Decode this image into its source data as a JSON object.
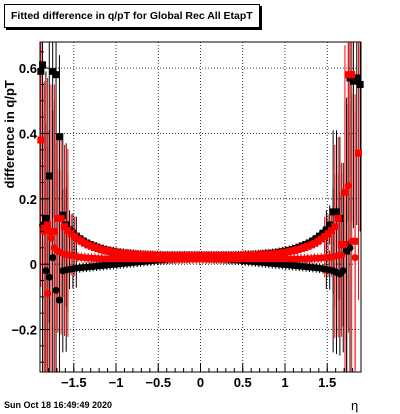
{
  "title": "Fitted difference in q/pT for Global Rec All EtapT",
  "timestamp": "Sun Oct 18 16:49:49 2020",
  "chart_data": {
    "type": "scatter",
    "title": "Fitted difference in q/pT for Global Rec All EtapT",
    "xlabel": "η",
    "ylabel": "difference in q/pT",
    "xlim": [
      -1.9,
      1.9
    ],
    "ylim": [
      -0.33,
      0.68
    ],
    "grid": true,
    "x_ticks": [
      -1.5,
      -1,
      -0.5,
      0,
      0.5,
      1,
      1.5
    ],
    "x_tick_labels": [
      "−1.5",
      "−1",
      "−0.5",
      "0",
      "0.5",
      "1",
      "1.5"
    ],
    "y_ticks": [
      -0.2,
      0,
      0.2,
      0.4,
      0.6
    ],
    "y_tick_labels": [
      "−0.2",
      "0",
      "0.2",
      "0.4",
      "0.6"
    ],
    "series": [
      {
        "color": "#000000",
        "marker": "square",
        "x": [
          -1.89,
          -1.87,
          -1.83,
          -1.79,
          -1.75,
          -1.71,
          -1.67,
          -1.63,
          -1.59,
          -1.55,
          -1.51,
          -1.47,
          -1.43,
          -1.39,
          -1.35,
          -1.31,
          -1.27,
          -1.23,
          -1.19,
          -1.15,
          -1.11,
          -1.07,
          -1.03,
          -0.99,
          -0.95,
          -0.91,
          -0.87,
          -0.83,
          -0.79,
          -0.75,
          -0.71,
          -0.67,
          -0.63,
          -0.59,
          -0.55,
          -0.51,
          -0.47,
          -0.43,
          -0.39,
          -0.35,
          -0.31,
          -0.27,
          -0.23,
          -0.19,
          -0.15,
          -0.11,
          -0.07,
          -0.03,
          0.01,
          0.05,
          0.09,
          0.13,
          0.17,
          0.21,
          0.25,
          0.29,
          0.33,
          0.37,
          0.41,
          0.45,
          0.49,
          0.53,
          0.57,
          0.61,
          0.65,
          0.69,
          0.73,
          0.77,
          0.81,
          0.85,
          0.89,
          0.93,
          0.97,
          1.01,
          1.05,
          1.09,
          1.13,
          1.17,
          1.21,
          1.25,
          1.29,
          1.33,
          1.37,
          1.41,
          1.45,
          1.49,
          1.53,
          1.57,
          1.61,
          1.65,
          1.69,
          1.73,
          1.77,
          1.81,
          1.85,
          1.89
        ],
        "y": [
          0.59,
          0.61,
          0.14,
          0.27,
          0.59,
          0.58,
          0.39,
          0.15,
          0.12,
          0.105,
          0.095,
          0.086,
          0.078,
          0.071,
          0.065,
          0.06,
          0.056,
          0.052,
          0.048,
          0.045,
          0.042,
          0.04,
          0.038,
          0.036,
          0.034,
          0.033,
          0.032,
          0.031,
          0.03,
          0.029,
          0.028,
          0.028,
          0.027,
          0.027,
          0.026,
          0.026,
          0.026,
          0.025,
          0.025,
          0.025,
          0.025,
          0.025,
          0.025,
          0.025,
          0.025,
          0.025,
          0.025,
          0.025,
          0.025,
          0.025,
          0.025,
          0.025,
          0.025,
          0.025,
          0.025,
          0.025,
          0.025,
          0.025,
          0.026,
          0.026,
          0.026,
          0.027,
          0.027,
          0.028,
          0.028,
          0.029,
          0.03,
          0.031,
          0.032,
          0.033,
          0.034,
          0.036,
          0.038,
          0.04,
          0.042,
          0.045,
          0.048,
          0.052,
          0.056,
          0.06,
          0.065,
          0.071,
          0.078,
          0.086,
          0.095,
          0.105,
          0.12,
          0.16,
          0.16,
          0.14,
          0.06,
          0.04,
          0.57,
          0.56,
          0.57,
          0.55
        ]
      },
      {
        "color": "#000000",
        "marker": "circle",
        "x": [
          -1.87,
          -1.83,
          -1.79,
          -1.75,
          -1.71,
          -1.67,
          -1.63,
          -1.59,
          -1.55,
          -1.51,
          -1.47,
          -1.43,
          -1.39,
          -1.35,
          -1.31,
          -1.27,
          -1.23,
          -1.19,
          -1.15,
          -1.11,
          -1.07,
          -1.03,
          -0.99,
          -0.95,
          -0.91,
          -0.87,
          -0.83,
          -0.79,
          -0.75,
          -0.71,
          -0.67,
          -0.63,
          -0.59,
          -0.55,
          -0.51,
          -0.47,
          -0.43,
          -0.39,
          -0.35,
          -0.31,
          -0.27,
          -0.23,
          -0.19,
          -0.15,
          -0.11,
          -0.07,
          -0.03,
          0.01,
          0.05,
          0.09,
          0.13,
          0.17,
          0.21,
          0.25,
          0.29,
          0.33,
          0.37,
          0.41,
          0.45,
          0.49,
          0.53,
          0.57,
          0.61,
          0.65,
          0.69,
          0.73,
          0.77,
          0.81,
          0.85,
          0.89,
          0.93,
          0.97,
          1.01,
          1.05,
          1.09,
          1.13,
          1.17,
          1.21,
          1.25,
          1.29,
          1.33,
          1.37,
          1.41,
          1.45,
          1.49,
          1.53,
          1.57,
          1.61,
          1.65,
          1.69,
          1.73,
          1.77
        ],
        "y": [
          0.12,
          -0.02,
          -0.04,
          0.02,
          -0.08,
          -0.11,
          -0.02,
          -0.018,
          -0.016,
          -0.014,
          -0.012,
          -0.011,
          -0.01,
          -0.009,
          -0.008,
          -0.007,
          -0.006,
          -0.005,
          -0.004,
          -0.003,
          -0.002,
          -0.001,
          0.0,
          0.001,
          0.002,
          0.003,
          0.004,
          0.005,
          0.006,
          0.007,
          0.008,
          0.009,
          0.01,
          0.011,
          0.012,
          0.013,
          0.014,
          0.015,
          0.016,
          0.017,
          0.018,
          0.018,
          0.019,
          0.019,
          0.02,
          0.02,
          0.02,
          0.02,
          0.02,
          0.019,
          0.019,
          0.018,
          0.018,
          0.017,
          0.016,
          0.015,
          0.014,
          0.013,
          0.012,
          0.011,
          0.01,
          0.009,
          0.008,
          0.007,
          0.006,
          0.005,
          0.004,
          0.003,
          0.002,
          0.001,
          0.0,
          -0.001,
          -0.002,
          -0.003,
          -0.004,
          -0.005,
          -0.006,
          -0.007,
          -0.008,
          -0.009,
          -0.01,
          -0.011,
          -0.012,
          -0.014,
          -0.016,
          -0.018,
          -0.02,
          -0.025,
          -0.03,
          -0.02,
          0.06,
          0.05
        ]
      },
      {
        "color": "#ff0000",
        "marker": "square",
        "x": [
          -1.89,
          -1.85,
          -1.81,
          -1.77,
          -1.73,
          -1.69,
          -1.65,
          -1.61,
          -1.57,
          -1.53,
          -1.49,
          -1.45,
          -1.41,
          -1.37,
          -1.33,
          -1.29,
          -1.25,
          -1.21,
          -1.17,
          -1.13,
          -1.09,
          -1.05,
          -1.01,
          -0.97,
          -0.93,
          -0.89,
          -0.85,
          -0.81,
          -0.77,
          -0.73,
          -0.69,
          -0.65,
          -0.61,
          -0.57,
          -0.53,
          -0.49,
          -0.45,
          -0.41,
          -0.37,
          -0.33,
          -0.29,
          -0.25,
          -0.21,
          -0.17,
          -0.13,
          -0.09,
          -0.05,
          -0.01,
          0.03,
          0.07,
          0.11,
          0.15,
          0.19,
          0.23,
          0.27,
          0.31,
          0.35,
          0.39,
          0.43,
          0.47,
          0.51,
          0.55,
          0.59,
          0.63,
          0.67,
          0.71,
          0.75,
          0.79,
          0.83,
          0.87,
          0.91,
          0.95,
          0.99,
          1.03,
          1.07,
          1.11,
          1.15,
          1.19,
          1.23,
          1.27,
          1.31,
          1.35,
          1.39,
          1.43,
          1.47,
          1.51,
          1.55,
          1.59,
          1.63,
          1.67,
          1.71,
          1.75,
          1.79,
          1.83,
          1.87
        ],
        "y": [
          0.38,
          0.11,
          0.12,
          0.1,
          0.1,
          0.14,
          0.14,
          0.115,
          0.103,
          0.093,
          0.085,
          0.077,
          0.07,
          0.064,
          0.059,
          0.055,
          0.051,
          0.048,
          0.045,
          0.042,
          0.04,
          0.038,
          0.036,
          0.034,
          0.033,
          0.032,
          0.031,
          0.03,
          0.029,
          0.029,
          0.028,
          0.028,
          0.027,
          0.027,
          0.027,
          0.026,
          0.026,
          0.026,
          0.026,
          0.026,
          0.026,
          0.026,
          0.026,
          0.026,
          0.026,
          0.026,
          0.026,
          0.026,
          0.026,
          0.026,
          0.026,
          0.026,
          0.026,
          0.026,
          0.026,
          0.026,
          0.026,
          0.026,
          0.026,
          0.026,
          0.027,
          0.027,
          0.027,
          0.028,
          0.028,
          0.029,
          0.029,
          0.03,
          0.031,
          0.032,
          0.033,
          0.034,
          0.036,
          0.038,
          0.04,
          0.042,
          0.045,
          0.048,
          0.051,
          0.055,
          0.059,
          0.064,
          0.07,
          0.077,
          0.085,
          0.093,
          0.103,
          0.115,
          0.14,
          0.06,
          0.22,
          0.58,
          0.58,
          0.07,
          0.34
        ]
      },
      {
        "color": "#ff0000",
        "marker": "circle",
        "x": [
          -1.85,
          -1.81,
          -1.77,
          -1.73,
          -1.69,
          -1.65,
          -1.61,
          -1.57,
          -1.53,
          -1.49,
          -1.45,
          -1.41,
          -1.37,
          -1.33,
          -1.29,
          -1.25,
          -1.21,
          -1.17,
          -1.13,
          -1.09,
          -1.05,
          -1.01,
          -0.97,
          -0.93,
          -0.89,
          -0.85,
          -0.81,
          -0.77,
          -0.73,
          -0.69,
          -0.65,
          -0.61,
          -0.57,
          -0.53,
          -0.49,
          -0.45,
          -0.41,
          -0.37,
          -0.33,
          -0.29,
          -0.25,
          -0.21,
          -0.17,
          -0.13,
          -0.09,
          -0.05,
          -0.01,
          0.03,
          0.07,
          0.11,
          0.15,
          0.19,
          0.23,
          0.27,
          0.31,
          0.35,
          0.39,
          0.43,
          0.47,
          0.51,
          0.55,
          0.59,
          0.63,
          0.67,
          0.71,
          0.75,
          0.79,
          0.83,
          0.87,
          0.91,
          0.95,
          0.99,
          1.03,
          1.07,
          1.11,
          1.15,
          1.19,
          1.23,
          1.27,
          1.31,
          1.35,
          1.39,
          1.43,
          1.47,
          1.51,
          1.55,
          1.59,
          1.63,
          1.67,
          1.71,
          1.75,
          1.79,
          1.83
        ],
        "y": [
          0.1,
          -0.09,
          0.08,
          0.05,
          0.04,
          0.035,
          0.03,
          0.028,
          0.026,
          0.024,
          0.022,
          0.021,
          0.02,
          0.019,
          0.018,
          0.018,
          0.017,
          0.017,
          0.016,
          0.016,
          0.016,
          0.016,
          0.016,
          0.016,
          0.016,
          0.016,
          0.016,
          0.016,
          0.016,
          0.016,
          0.016,
          0.016,
          0.016,
          0.016,
          0.016,
          0.016,
          0.016,
          0.016,
          0.016,
          0.016,
          0.016,
          0.016,
          0.016,
          0.016,
          0.016,
          0.016,
          0.016,
          0.016,
          0.016,
          0.016,
          0.016,
          0.016,
          0.016,
          0.016,
          0.016,
          0.016,
          0.016,
          0.016,
          0.016,
          0.016,
          0.016,
          0.016,
          0.016,
          0.016,
          0.016,
          0.016,
          0.016,
          0.016,
          0.016,
          0.016,
          0.016,
          0.016,
          0.016,
          0.016,
          0.016,
          0.016,
          0.016,
          0.016,
          0.017,
          0.017,
          0.018,
          0.018,
          0.019,
          0.02,
          0.021,
          0.022,
          0.024,
          0.026,
          0.028,
          0.06,
          0.24,
          0.07,
          0.02
        ]
      }
    ]
  }
}
